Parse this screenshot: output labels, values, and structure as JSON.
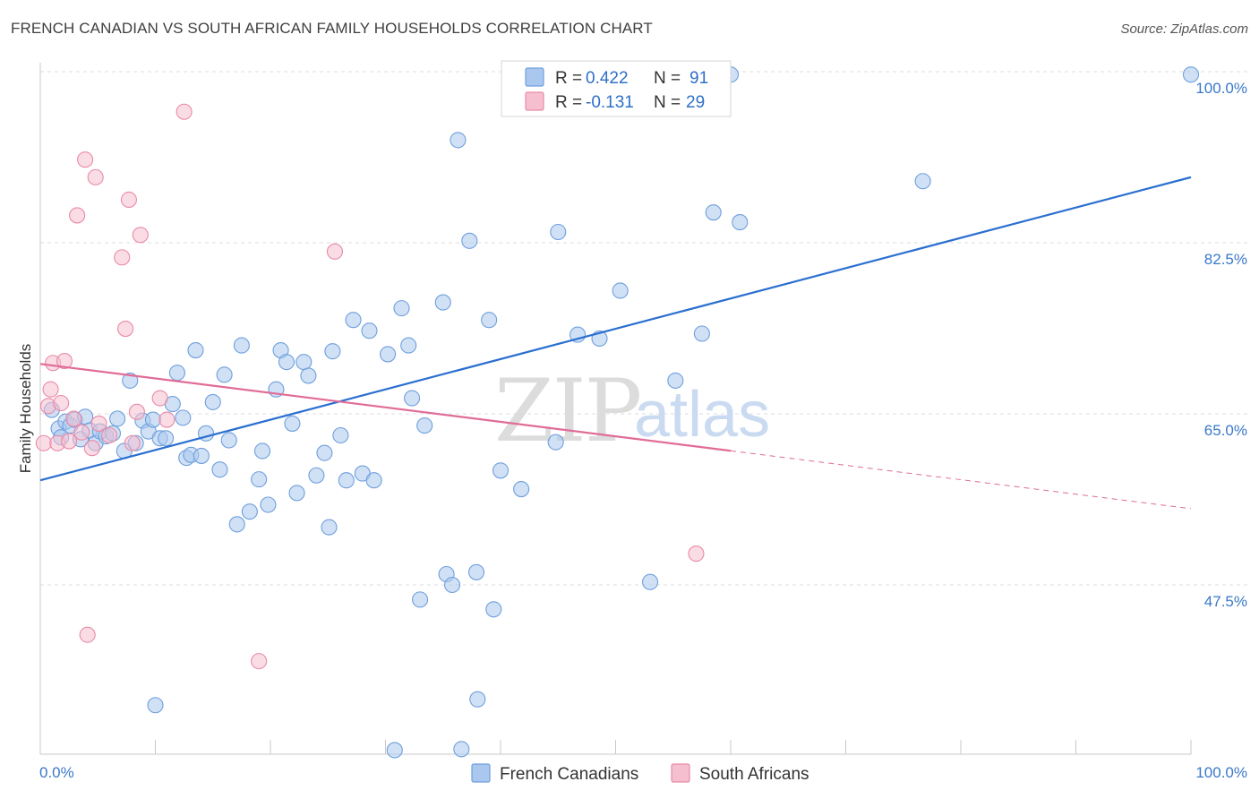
{
  "header": {
    "title": "FRENCH CANADIAN VS SOUTH AFRICAN FAMILY HOUSEHOLDS CORRELATION CHART",
    "source": "Source: ZipAtlas.com"
  },
  "watermark": {
    "part1": "ZIP",
    "part2": "atlas"
  },
  "colors": {
    "blue_fill": "#aac8ef",
    "blue_stroke": "#6f9fdc",
    "blue_line": "#2a6fd0",
    "pink_fill": "#f5bfd0",
    "pink_stroke": "#e98aa8",
    "pink_line": "#e06c97",
    "tick_text": "#3a78c9",
    "grid": "#dddddd"
  },
  "legend": {
    "series1": {
      "r_label": "R = ",
      "r_value": "0.422",
      "n_label": "N = ",
      "n_value": "91"
    },
    "series2": {
      "r_label": "R = ",
      "r_value": "-0.131",
      "n_label": "N = ",
      "n_value": "29"
    }
  },
  "chart_data": {
    "type": "scatter",
    "title": "FRENCH CANADIAN VS SOUTH AFRICAN FAMILY HOUSEHOLDS CORRELATION CHART",
    "xlabel": "",
    "ylabel": "Family Households",
    "xlim": [
      0,
      100
    ],
    "ylim": [
      32.0,
      102.0
    ],
    "x_tick_labels": [
      "0.0%",
      "100.0%"
    ],
    "y_ticks": [
      47.5,
      65.0,
      82.5,
      100.0
    ],
    "y_tick_labels": [
      "47.5%",
      "65.0%",
      "82.5%",
      "100.0%"
    ],
    "grid": true,
    "legend_position": "top-center",
    "series": [
      {
        "name": "French Canadians",
        "color": "#aac8ef",
        "trend": {
          "x": [
            0,
            100
          ],
          "y": [
            58.2,
            89.2
          ],
          "dashed_from": null
        },
        "points": [
          [
            1.0,
            65.4
          ],
          [
            1.6,
            63.5
          ],
          [
            1.8,
            62.6
          ],
          [
            2.2,
            64.2
          ],
          [
            2.6,
            63.8
          ],
          [
            3.0,
            64.4
          ],
          [
            3.5,
            62.4
          ],
          [
            3.9,
            64.7
          ],
          [
            4.3,
            63.3
          ],
          [
            4.8,
            62.0
          ],
          [
            5.2,
            63.2
          ],
          [
            5.7,
            62.7
          ],
          [
            6.3,
            63.0
          ],
          [
            6.7,
            64.5
          ],
          [
            7.3,
            61.2
          ],
          [
            7.8,
            68.4
          ],
          [
            8.3,
            62.0
          ],
          [
            8.9,
            64.3
          ],
          [
            9.4,
            63.2
          ],
          [
            9.8,
            64.4
          ],
          [
            10.4,
            62.5
          ],
          [
            10.9,
            62.5
          ],
          [
            11.5,
            66.0
          ],
          [
            11.9,
            69.2
          ],
          [
            12.4,
            64.6
          ],
          [
            12.7,
            60.5
          ],
          [
            13.1,
            60.8
          ],
          [
            13.5,
            71.5
          ],
          [
            14.0,
            60.7
          ],
          [
            14.4,
            63.0
          ],
          [
            15.0,
            66.2
          ],
          [
            15.6,
            59.3
          ],
          [
            16.0,
            69.0
          ],
          [
            16.4,
            62.3
          ],
          [
            17.1,
            53.7
          ],
          [
            17.5,
            72.0
          ],
          [
            18.2,
            55.0
          ],
          [
            19.0,
            58.3
          ],
          [
            19.3,
            61.2
          ],
          [
            19.8,
            55.7
          ],
          [
            20.5,
            67.5
          ],
          [
            20.9,
            71.5
          ],
          [
            21.4,
            70.3
          ],
          [
            21.9,
            64.0
          ],
          [
            22.3,
            56.9
          ],
          [
            22.9,
            70.3
          ],
          [
            23.3,
            68.9
          ],
          [
            24.0,
            58.7
          ],
          [
            24.7,
            61.0
          ],
          [
            25.1,
            53.4
          ],
          [
            25.4,
            71.4
          ],
          [
            26.1,
            62.8
          ],
          [
            26.6,
            58.2
          ],
          [
            27.2,
            74.6
          ],
          [
            28.0,
            58.9
          ],
          [
            28.6,
            73.5
          ],
          [
            29.0,
            58.2
          ],
          [
            30.2,
            71.1
          ],
          [
            31.4,
            75.8
          ],
          [
            32.0,
            72.0
          ],
          [
            32.3,
            66.6
          ],
          [
            33.0,
            46.0
          ],
          [
            33.4,
            63.8
          ],
          [
            35.0,
            76.4
          ],
          [
            35.3,
            48.6
          ],
          [
            35.8,
            47.5
          ],
          [
            36.3,
            93.0
          ],
          [
            36.6,
            30.7
          ],
          [
            37.3,
            82.7
          ],
          [
            37.9,
            48.8
          ],
          [
            39.0,
            74.6
          ],
          [
            39.4,
            45.0
          ],
          [
            40.0,
            59.2
          ],
          [
            41.8,
            57.3
          ],
          [
            44.8,
            62.1
          ],
          [
            45.0,
            83.6
          ],
          [
            46.7,
            73.1
          ],
          [
            47.9,
            100.0
          ],
          [
            48.6,
            72.7
          ],
          [
            50.4,
            77.6
          ],
          [
            53.0,
            47.8
          ],
          [
            55.2,
            68.4
          ],
          [
            57.5,
            73.2
          ],
          [
            58.5,
            85.6
          ],
          [
            60.0,
            99.7
          ],
          [
            60.8,
            84.6
          ],
          [
            76.7,
            88.8
          ],
          [
            100.0,
            99.7
          ],
          [
            10.0,
            35.2
          ],
          [
            30.8,
            30.6
          ],
          [
            38.0,
            35.8
          ]
        ]
      },
      {
        "name": "South Africans",
        "color": "#f5bfd0",
        "trend": {
          "x": [
            0,
            100
          ],
          "y": [
            70.1,
            55.3
          ],
          "dashed_from": 60.0
        },
        "points": [
          [
            0.3,
            62.0
          ],
          [
            0.7,
            65.8
          ],
          [
            0.9,
            67.5
          ],
          [
            1.1,
            70.2
          ],
          [
            1.5,
            62.0
          ],
          [
            1.8,
            66.1
          ],
          [
            2.1,
            70.4
          ],
          [
            2.5,
            62.2
          ],
          [
            2.9,
            64.5
          ],
          [
            3.2,
            85.3
          ],
          [
            3.6,
            63.1
          ],
          [
            3.9,
            91.0
          ],
          [
            4.1,
            42.4
          ],
          [
            4.5,
            61.5
          ],
          [
            4.8,
            89.2
          ],
          [
            5.1,
            64.0
          ],
          [
            7.1,
            81.0
          ],
          [
            7.4,
            73.7
          ],
          [
            7.7,
            86.9
          ],
          [
            8.0,
            62.0
          ],
          [
            8.4,
            65.2
          ],
          [
            8.7,
            83.3
          ],
          [
            10.4,
            66.6
          ],
          [
            11.0,
            64.4
          ],
          [
            12.5,
            95.9
          ],
          [
            19.0,
            39.7
          ],
          [
            25.6,
            81.6
          ],
          [
            57.0,
            50.7
          ],
          [
            6.0,
            62.8
          ]
        ]
      }
    ]
  },
  "bottom_legend": {
    "series1_label": "French Canadians",
    "series2_label": "South Africans"
  }
}
